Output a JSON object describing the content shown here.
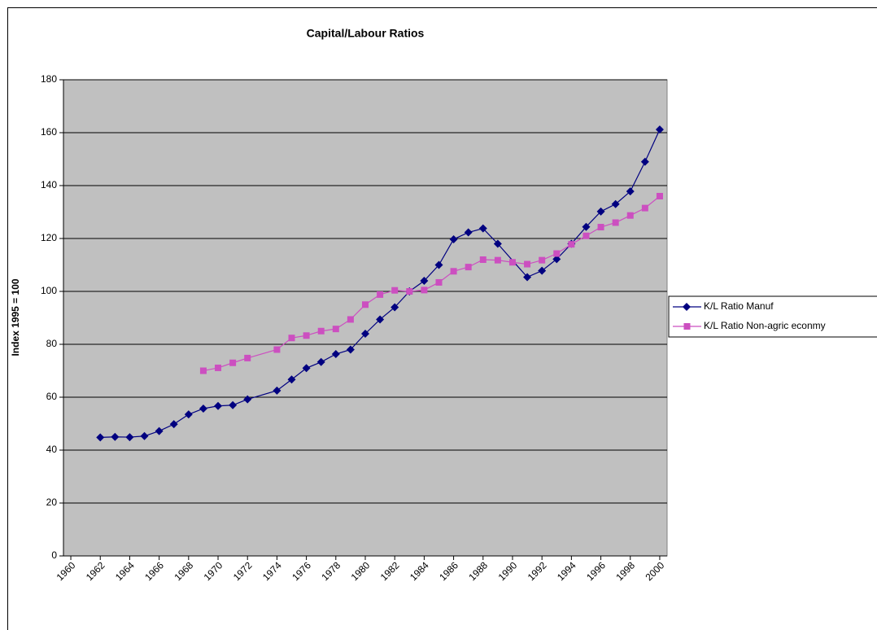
{
  "chart_data": {
    "type": "line",
    "title": "Capital/Labour Ratios",
    "y_label": "Index 1995 = 100",
    "xlim": [
      1959.5,
      2000.5
    ],
    "xticks": [
      1960,
      1962,
      1964,
      1966,
      1968,
      1970,
      1972,
      1974,
      1976,
      1978,
      1980,
      1982,
      1984,
      1986,
      1988,
      1990,
      1992,
      1994,
      1996,
      1998,
      2000
    ],
    "ylim": [
      0,
      180
    ],
    "yticks": [
      0,
      20,
      40,
      60,
      80,
      100,
      120,
      140,
      160,
      180
    ],
    "grid": true,
    "legend": "right",
    "series": [
      {
        "name": "K/L Ratio Manuf",
        "color": "#000080",
        "marker": "diamond",
        "x": [
          1962,
          1963,
          1964,
          1965,
          1966,
          1967,
          1968,
          1969,
          1970,
          1971,
          1972,
          1974,
          1975,
          1976,
          1977,
          1978,
          1979,
          1980,
          1981,
          1982,
          1983,
          1984,
          1985,
          1986,
          1987,
          1988,
          1989,
          1991,
          1992,
          1993,
          1994,
          1995,
          1996,
          1997,
          1998,
          1999,
          2000
        ],
        "values": [
          44.8,
          45,
          44.9,
          45.3,
          47.2,
          49.8,
          53.5,
          55.7,
          56.7,
          57,
          59.2,
          62.5,
          66.7,
          71,
          73.3,
          76.3,
          78,
          84,
          89.4,
          94,
          100,
          104,
          110,
          119.7,
          122.3,
          123.8,
          118,
          105.4,
          107.8,
          112.2,
          118,
          124.4,
          130.2,
          133,
          137.8,
          149,
          161.2
        ]
      },
      {
        "name": "K/L Ratio Non-agric econmy",
        "color": "#cc4fc0",
        "marker": "square",
        "x": [
          1969,
          1970,
          1971,
          1972,
          1974,
          1975,
          1976,
          1977,
          1978,
          1979,
          1980,
          1981,
          1982,
          1983,
          1984,
          1985,
          1986,
          1987,
          1988,
          1989,
          1990,
          1991,
          1992,
          1993,
          1994,
          1995,
          1996,
          1997,
          1998,
          1999,
          2000
        ],
        "values": [
          70,
          71.1,
          73,
          74.8,
          78,
          82.4,
          83.3,
          85,
          85.8,
          89.4,
          95,
          98.8,
          100.4,
          100,
          100.5,
          103.4,
          107.6,
          109.2,
          112,
          111.8,
          111,
          110.3,
          111.8,
          114.3,
          117.8,
          121,
          124.3,
          126,
          128.7,
          131.5,
          136
        ]
      }
    ]
  }
}
